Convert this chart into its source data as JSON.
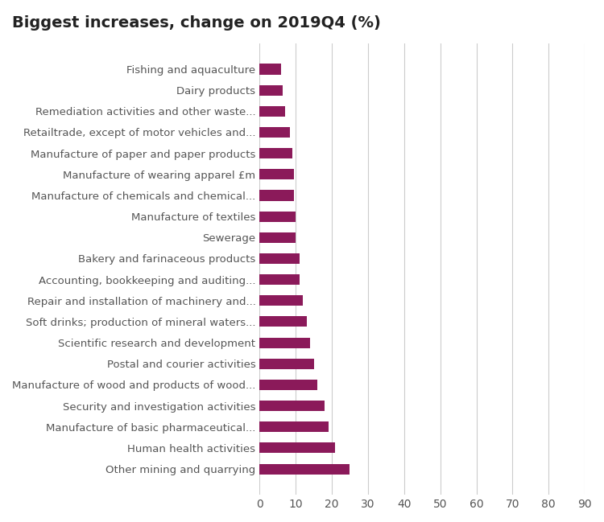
{
  "title": "Biggest increases, change on 2019Q4 (%)",
  "categories": [
    "Other mining and quarrying",
    "Human health activities",
    "Manufacture of basic pharmaceutical...",
    "Security and investigation activities",
    "Manufacture of wood and products of wood...",
    "Postal and courier activities",
    "Scientific research and development",
    "Soft drinks; production of mineral waters...",
    "Repair and installation of machinery and...",
    "Accounting, bookkeeping and auditing...",
    "Bakery and farinaceous products",
    "Sewerage",
    "Manufacture of textiles",
    "Manufacture of chemicals and chemical...",
    "Manufacture of wearing apparel £m",
    "Manufacture of paper and paper products",
    "Retailtrade, except of motor vehicles and...",
    "Remediation activities and other waste...",
    "Dairy products",
    "Fishing and aquaculture"
  ],
  "values": [
    25,
    21,
    19,
    18,
    16,
    15,
    14,
    13,
    12,
    11,
    11,
    10,
    10,
    9.5,
    9.5,
    9,
    8.5,
    7,
    6.5,
    6
  ],
  "bar_color": "#8B1A5A",
  "xlim": [
    0,
    90
  ],
  "xticks": [
    0,
    10,
    20,
    30,
    40,
    50,
    60,
    70,
    80,
    90
  ],
  "title_fontsize": 14,
  "label_fontsize": 9.5,
  "xtick_fontsize": 10,
  "background_color": "#ffffff",
  "grid_color": "#cccccc",
  "label_color": "#555555",
  "bar_height": 0.5
}
